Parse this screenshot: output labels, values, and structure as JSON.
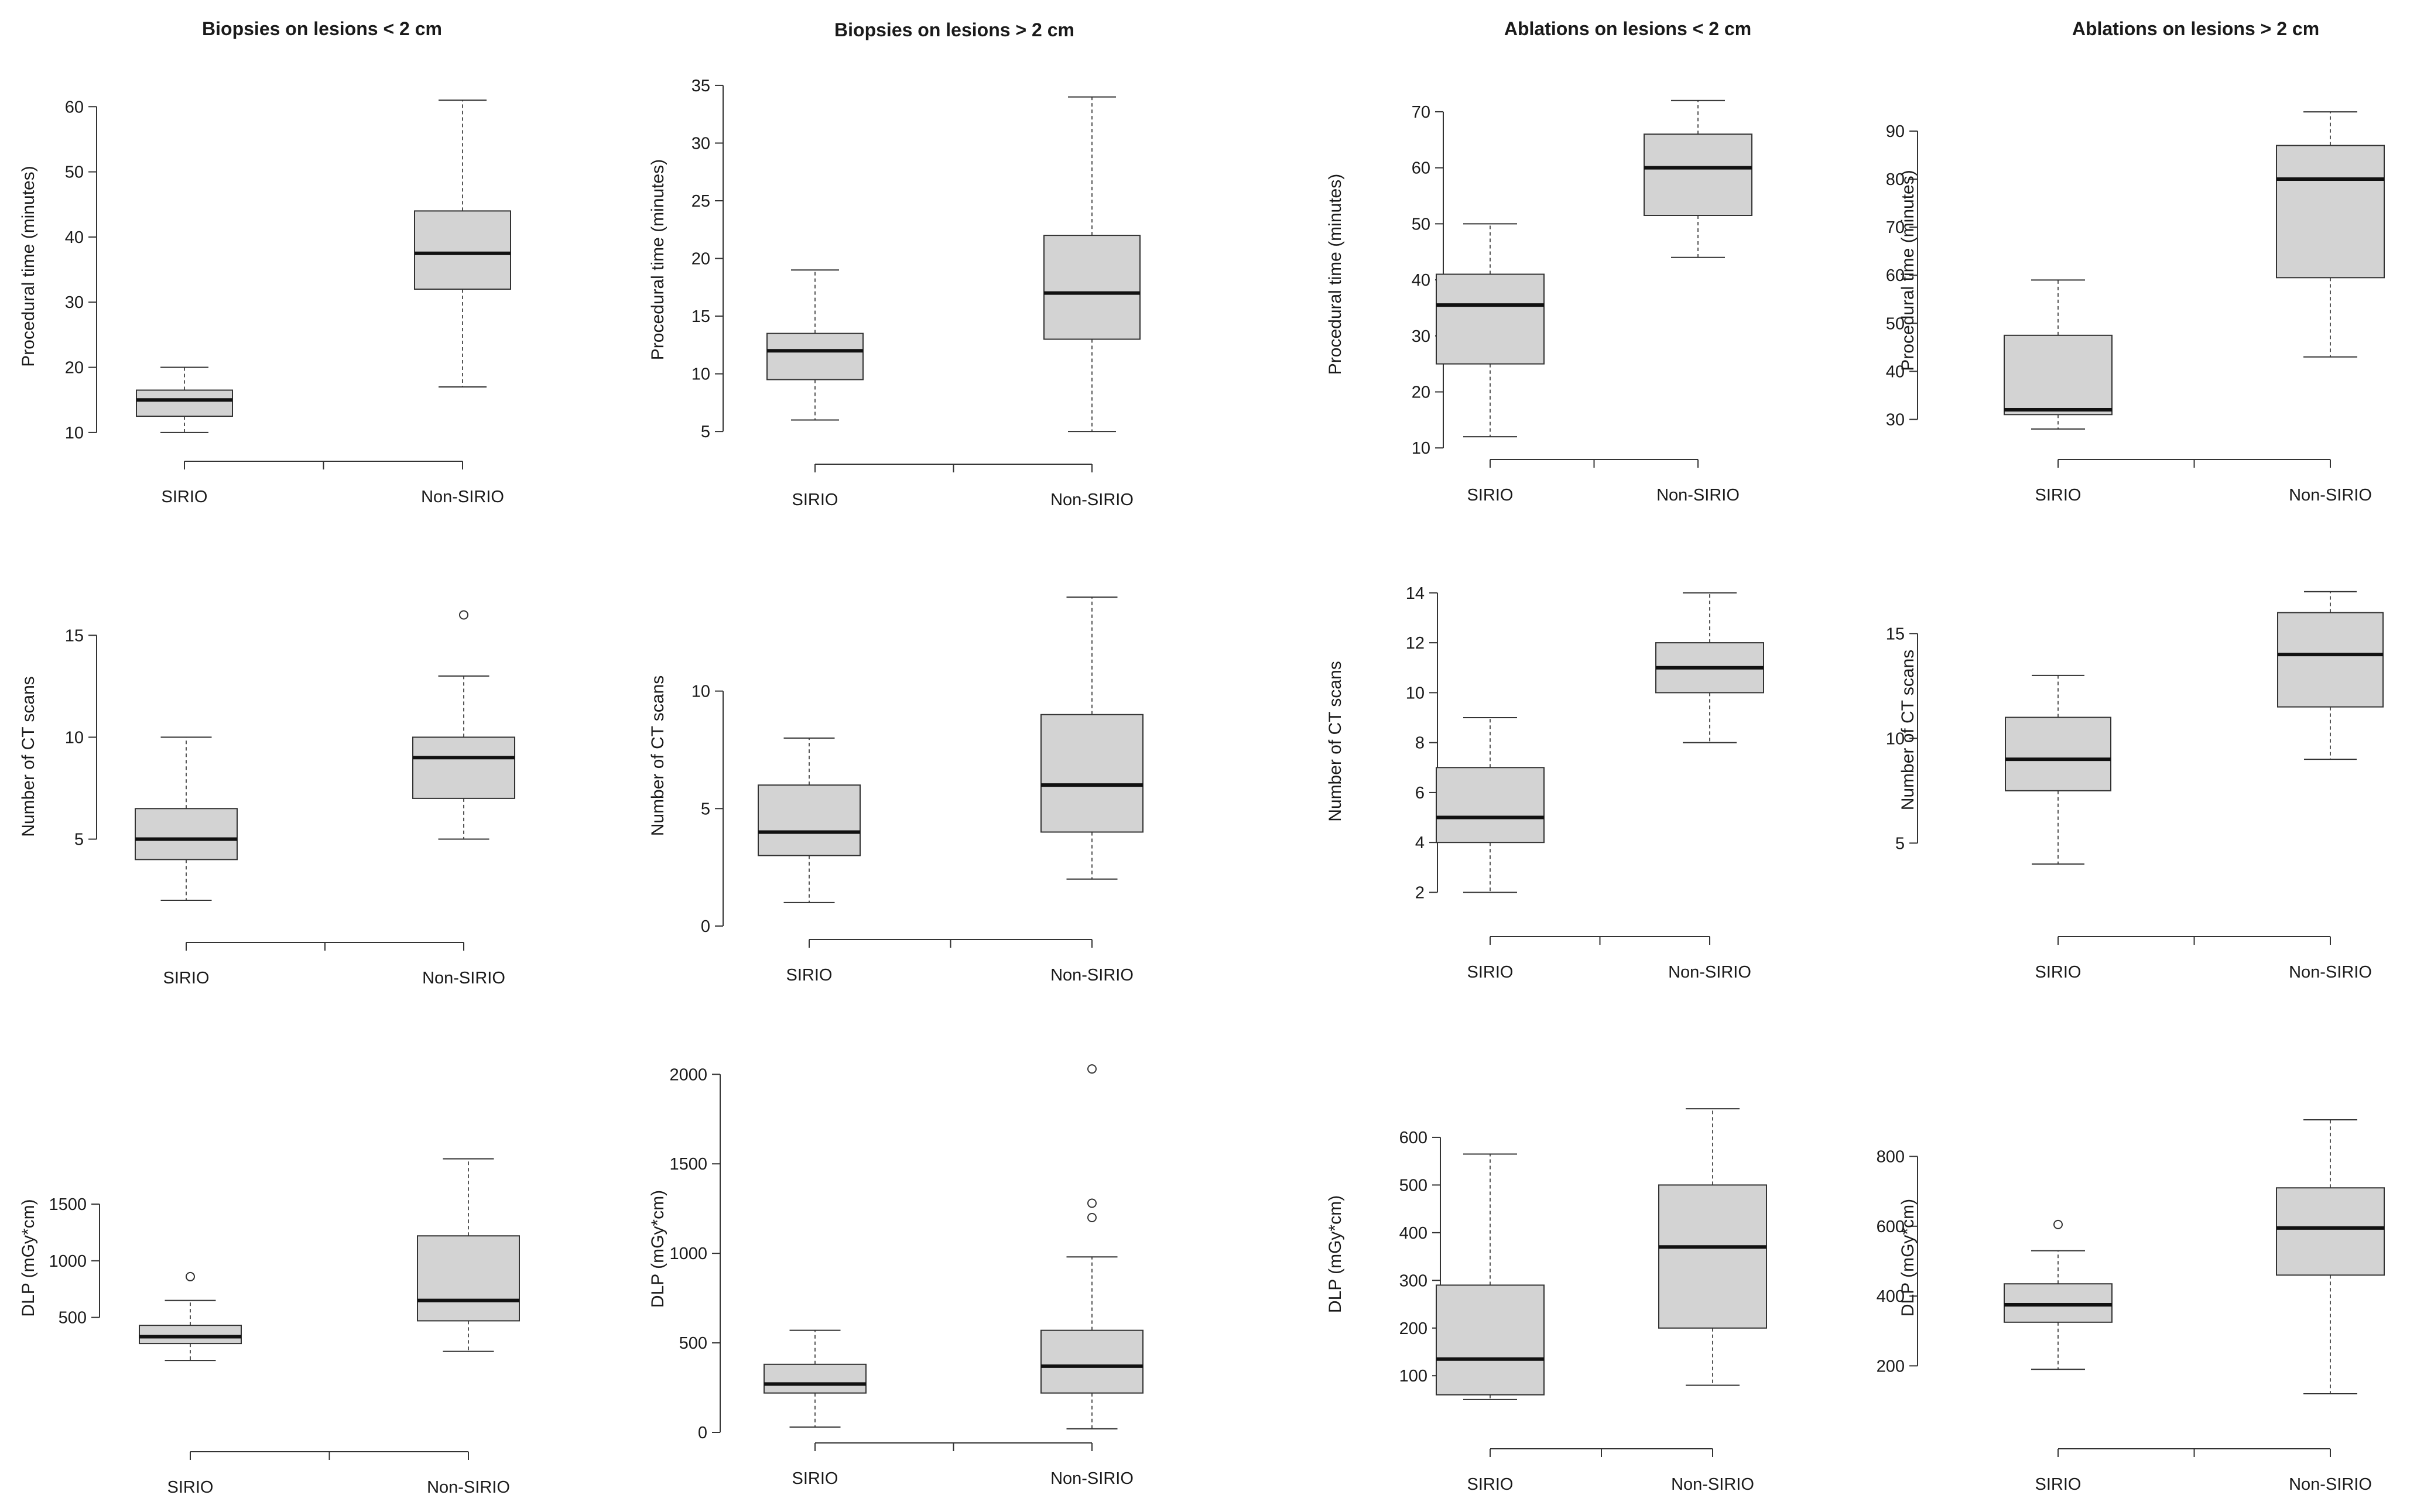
{
  "column_titles": [
    "Biopsies on lesions < 2 cm",
    "Biopsies on lesions > 2 cm",
    "Ablations on lesions < 2 cm",
    "Ablations on lesions > 2 cm"
  ],
  "chart_data": [
    {
      "type": "box",
      "title": "Biopsies on lesions < 2 cm",
      "ylabel": "Procedural time (minutes)",
      "categories": [
        "SIRIO",
        "Non-SIRIO"
      ],
      "yticks": [
        10,
        20,
        30,
        40,
        50,
        60
      ],
      "ylim": [
        9,
        62
      ],
      "boxes": [
        {
          "whisker_low": 10,
          "q1": 12.5,
          "median": 15,
          "q3": 16.5,
          "whisker_high": 20,
          "outliers": []
        },
        {
          "whisker_low": 17,
          "q1": 32,
          "median": 37.5,
          "q3": 44,
          "whisker_high": 61,
          "outliers": []
        }
      ]
    },
    {
      "type": "box",
      "title": "Biopsies on lesions > 2 cm",
      "ylabel": "Procedural time (minutes)",
      "categories": [
        "SIRIO",
        "Non-SIRIO"
      ],
      "yticks": [
        5,
        10,
        15,
        20,
        25,
        30,
        35
      ],
      "ylim": [
        4.5,
        35.3
      ],
      "boxes": [
        {
          "whisker_low": 6,
          "q1": 9.5,
          "median": 12,
          "q3": 13.5,
          "whisker_high": 19,
          "outliers": []
        },
        {
          "whisker_low": 5,
          "q1": 13,
          "median": 17,
          "q3": 22,
          "whisker_high": 34,
          "outliers": []
        }
      ]
    },
    {
      "type": "box",
      "title": "Ablations on lesions < 2 cm",
      "ylabel": "Procedural time (minutes)",
      "categories": [
        "SIRIO",
        "Non-SIRIO"
      ],
      "yticks": [
        10,
        20,
        30,
        40,
        50,
        60,
        70
      ],
      "ylim": [
        9.5,
        72.5
      ],
      "boxes": [
        {
          "whisker_low": 12,
          "q1": 25,
          "median": 35.5,
          "q3": 41,
          "whisker_high": 50,
          "outliers": []
        },
        {
          "whisker_low": 44,
          "q1": 51.5,
          "median": 60,
          "q3": 66,
          "whisker_high": 72,
          "outliers": []
        }
      ]
    },
    {
      "type": "box",
      "title": "Ablations on lesions > 2 cm",
      "ylabel": "Procedural time (minutes)",
      "categories": [
        "SIRIO",
        "Non-SIRIO"
      ],
      "yticks": [
        30,
        40,
        50,
        60,
        70,
        80,
        90
      ],
      "ylim": [
        27.5,
        94.5
      ],
      "boxes": [
        {
          "whisker_low": 28,
          "q1": 31,
          "median": 32,
          "q3": 47.5,
          "whisker_high": 59,
          "outliers": []
        },
        {
          "whisker_low": 43,
          "q1": 59.5,
          "median": 80,
          "q3": 87,
          "whisker_high": 94,
          "outliers": []
        }
      ]
    },
    {
      "type": "box",
      "ylabel": "Number of CT scans",
      "categories": [
        "SIRIO",
        "Non-SIRIO"
      ],
      "yticks": [
        5,
        10,
        15
      ],
      "ylim": [
        1.8,
        16.3
      ],
      "boxes": [
        {
          "whisker_low": 2,
          "q1": 4,
          "median": 5,
          "q3": 6.5,
          "whisker_high": 10,
          "outliers": []
        },
        {
          "whisker_low": 5,
          "q1": 7,
          "median": 9,
          "q3": 10,
          "whisker_high": 13,
          "outliers": [
            16
          ]
        }
      ]
    },
    {
      "type": "box",
      "ylabel": "Number of CT scans",
      "categories": [
        "SIRIO",
        "Non-SIRIO"
      ],
      "yticks": [
        0,
        5,
        10
      ],
      "ylim": [
        0,
        14.5
      ],
      "boxes": [
        {
          "whisker_low": 1,
          "q1": 3,
          "median": 4,
          "q3": 6,
          "whisker_high": 8,
          "outliers": []
        },
        {
          "whisker_low": 2,
          "q1": 4,
          "median": 6,
          "q3": 9,
          "whisker_high": 14,
          "outliers": []
        }
      ]
    },
    {
      "type": "box",
      "ylabel": "Number of CT scans",
      "categories": [
        "SIRIO",
        "Non-SIRIO"
      ],
      "yticks": [
        2,
        4,
        6,
        8,
        10,
        12,
        14
      ],
      "ylim": [
        1.8,
        14.3
      ],
      "boxes": [
        {
          "whisker_low": 2,
          "q1": 4,
          "median": 5,
          "q3": 7,
          "whisker_high": 9,
          "outliers": []
        },
        {
          "whisker_low": 8,
          "q1": 10,
          "median": 11,
          "q3": 12,
          "whisker_high": 14,
          "outliers": []
        }
      ]
    },
    {
      "type": "box",
      "ylabel": "Number of CT scans",
      "categories": [
        "SIRIO",
        "Non-SIRIO"
      ],
      "yticks": [
        5,
        10,
        15
      ],
      "ylim": [
        3.5,
        17.3
      ],
      "boxes": [
        {
          "whisker_low": 4,
          "q1": 7.5,
          "median": 9,
          "q3": 11,
          "whisker_high": 13,
          "outliers": []
        },
        {
          "whisker_low": 9,
          "q1": 11.5,
          "median": 14,
          "q3": 16,
          "whisker_high": 17,
          "outliers": []
        }
      ]
    },
    {
      "type": "box",
      "ylabel": "DLP (mGy*cm)",
      "categories": [
        "SIRIO",
        "Non-SIRIO"
      ],
      "yticks": [
        500,
        1000,
        1500
      ],
      "ylim": [
        100,
        1950
      ],
      "boxes": [
        {
          "whisker_low": 120,
          "q1": 270,
          "median": 330,
          "q3": 430,
          "whisker_high": 650,
          "outliers": [
            860
          ]
        },
        {
          "whisker_low": 200,
          "q1": 470,
          "median": 650,
          "q3": 1220,
          "whisker_high": 1900,
          "outliers": []
        }
      ]
    },
    {
      "type": "box",
      "ylabel": "DLP (mGy*cm)",
      "categories": [
        "SIRIO",
        "Non-SIRIO"
      ],
      "yticks": [
        0,
        500,
        1000,
        1500,
        2000
      ],
      "ylim": [
        0,
        2050
      ],
      "boxes": [
        {
          "whisker_low": 30,
          "q1": 220,
          "median": 270,
          "q3": 380,
          "whisker_high": 570,
          "outliers": []
        },
        {
          "whisker_low": 20,
          "q1": 220,
          "median": 370,
          "q3": 570,
          "whisker_high": 980,
          "outliers": [
            1200,
            1280,
            2030
          ]
        }
      ]
    },
    {
      "type": "box",
      "ylabel": "DLP (mGy*cm)",
      "categories": [
        "SIRIO",
        "Non-SIRIO"
      ],
      "yticks": [
        100,
        200,
        300,
        400,
        500,
        600
      ],
      "ylim": [
        45,
        665
      ],
      "boxes": [
        {
          "whisker_low": 50,
          "q1": 60,
          "median": 135,
          "q3": 290,
          "whisker_high": 565,
          "outliers": []
        },
        {
          "whisker_low": 80,
          "q1": 200,
          "median": 370,
          "q3": 500,
          "whisker_high": 660,
          "outliers": []
        }
      ]
    },
    {
      "type": "box",
      "ylabel": "DLP (mGy*cm)",
      "categories": [
        "SIRIO",
        "Non-SIRIO"
      ],
      "yticks": [
        200,
        400,
        600,
        800
      ],
      "ylim": [
        110,
        910
      ],
      "boxes": [
        {
          "whisker_low": 190,
          "q1": 325,
          "median": 375,
          "q3": 435,
          "whisker_high": 530,
          "outliers": [
            605
          ]
        },
        {
          "whisker_low": 120,
          "q1": 460,
          "median": 595,
          "q3": 710,
          "whisker_high": 905,
          "outliers": []
        }
      ]
    }
  ],
  "colors": {
    "box_fill": "#d3d3d3",
    "stroke": "#333333",
    "whisker": "#555555",
    "median": "#111111",
    "background": "#ffffff"
  }
}
